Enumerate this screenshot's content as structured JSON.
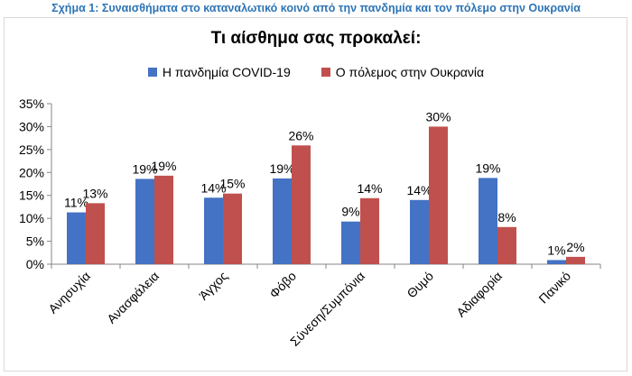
{
  "caption": "Σχήμα 1: Συναισθήματα στο καταναλωτικό κοινό από την πανδημία και τον πόλεμο στην Ουκρανία",
  "chart_data": {
    "type": "bar",
    "title": "Τι αίσθημα σας προκαλεί:",
    "categories": [
      "Ανησυχία",
      "Ανασφάλεια",
      "Άγχος",
      "Φόβο",
      "Σύνεση/Συμπόνια",
      "Θυμό",
      "Αδιαφορία",
      "Πανικό"
    ],
    "series": [
      {
        "name": "Η πανδημία COVID-19",
        "values": [
          11.3,
          18.6,
          14.5,
          18.7,
          9.3,
          14.0,
          18.8,
          0.9
        ],
        "labels": [
          "11%",
          "19%",
          "14%",
          "19%",
          "9%",
          "14%",
          "19%",
          "1%"
        ],
        "color": "#4472c4"
      },
      {
        "name": "Ο πόλεμος στην Ουκρανία",
        "values": [
          13.3,
          19.3,
          15.4,
          25.9,
          14.4,
          30.0,
          8.1,
          1.6
        ],
        "labels": [
          "13%",
          "19%",
          "15%",
          "26%",
          "14%",
          "30%",
          "8%",
          "2%"
        ],
        "color": "#c0504d"
      }
    ],
    "yticks": [
      "0%",
      "5%",
      "10%",
      "15%",
      "20%",
      "25%",
      "30%",
      "35%"
    ],
    "ylim": [
      0,
      35
    ],
    "xlabel": "",
    "ylabel": "",
    "legend": "top",
    "grid": false
  }
}
